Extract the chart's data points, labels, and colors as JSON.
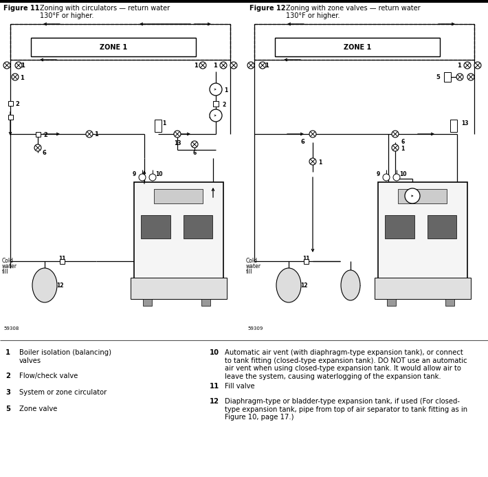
{
  "page_width": 7.1,
  "page_height": 6.94,
  "dpi": 100,
  "bg_color": "#ffffff",
  "fig11_bold": "Figure 11",
  "fig11_rest": "Zoning with circulators — return water\n130°F or higher.",
  "fig12_bold": "Figure 12",
  "fig12_rest": "Zoning with zone valves — return water\n130°F or higher.",
  "legend_left": [
    [
      "1",
      "Boiler isolation (balancing)\nvalves"
    ],
    [
      "2",
      "Flow/check valve"
    ],
    [
      "3",
      "System or zone circulator"
    ],
    [
      "5",
      "Zone valve"
    ]
  ],
  "leg10_pre": "Automatic air vent (with diaphragm-type expansion tank), or connect\nto tank fitting (closed-type expansion tank). ",
  "leg10_bold": "DO NOT",
  "leg10_post": " use an automatic\nair vent when using closed-type expansion tank. It would allow air to\nleave the system, causing waterlogging of the expansion tank.",
  "leg11": "Fill valve",
  "leg12_pre": "Diaphragm-type or bladder-type expansion tank, if used (For closed-\ntype expansion tank, pipe from top of air separator to tank fitting as in\n",
  "leg12_bold": "Figure 10",
  "leg12_post": ", page 17.)"
}
